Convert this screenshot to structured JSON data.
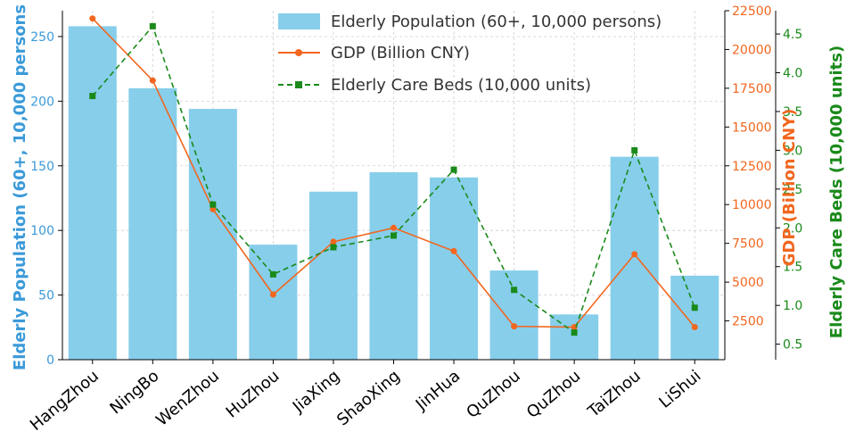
{
  "chart_data": {
    "type": "bar+line",
    "categories": [
      "HangZhou",
      "NingBo",
      "WenZhou",
      "HuZhou",
      "JiaXing",
      "ShaoXing",
      "JinHua",
      "QuZhou",
      "QuZhou",
      "TaiZhou",
      "LiShui"
    ],
    "series": [
      {
        "name": "Elderly Population (60+, 10,000 persons)",
        "type": "bar",
        "axis": "left",
        "color": "#87CEEB",
        "values": [
          258,
          210,
          194,
          89,
          130,
          145,
          141,
          69,
          35,
          157,
          65
        ]
      },
      {
        "name": "GDP (Billion CNY)",
        "type": "line",
        "axis": "right1",
        "color": "#F2661E",
        "values": [
          22000,
          18000,
          9700,
          4200,
          7600,
          8500,
          7000,
          2150,
          2100,
          6800,
          2100
        ]
      },
      {
        "name": "Elderly Care Beds (10,000 units)",
        "type": "line",
        "axis": "right2",
        "color": "#1A8A1A",
        "values": [
          3.7,
          4.6,
          2.3,
          1.4,
          1.75,
          1.9,
          2.75,
          1.2,
          0.65,
          3.0,
          0.97
        ]
      }
    ],
    "axes": {
      "left": {
        "label": "Elderly Population (60+, 10,000 persons",
        "color": "#3B9AD9",
        "ylim": [
          0,
          270
        ],
        "ticks": [
          0,
          50,
          100,
          150,
          200,
          250
        ]
      },
      "right1": {
        "label": "GDP (Billion CNY)",
        "color": "#F2661E",
        "ylim": [
          0,
          22500
        ],
        "ticks": [
          2500,
          5000,
          7500,
          10000,
          12500,
          15000,
          17500,
          20000,
          22500
        ]
      },
      "right2": {
        "label": "Elderly Care Beds (10,000 units)",
        "color": "#1A8A1A",
        "ylim": [
          0.3,
          4.8
        ],
        "ticks": [
          0.5,
          1.0,
          1.5,
          2.0,
          2.5,
          3.0,
          3.5,
          4.0,
          4.5
        ],
        "tick_labels": [
          "0.5",
          "1.0",
          "1.5",
          "2.0",
          "2.5",
          "3.0",
          "3.5",
          "4.0",
          "4.5"
        ]
      }
    },
    "legend": {
      "position": "top-right",
      "entries": [
        "Elderly Population (60+, 10,000 persons)",
        "GDP (Billion CNY)",
        "Elderly Care Beds (10,000 units)"
      ]
    },
    "grid": true
  }
}
